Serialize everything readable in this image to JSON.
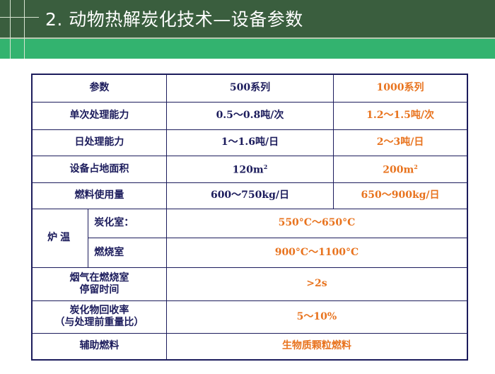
{
  "slide": {
    "title": "2. 动物热解炭化技术—设备参数"
  },
  "colors": {
    "header": "#3a5e3e",
    "band": "#33b36f",
    "text": "#1c1c5c",
    "accent": "#e8731e"
  },
  "table": {
    "headers": [
      "参数",
      "500系列",
      "1000系列"
    ],
    "rows": [
      {
        "param": "单次处理能力",
        "s500": "0.5～0.8吨/次",
        "s1000": "1.2～1.5吨/次"
      },
      {
        "param": "日处理能力",
        "s500": "1～1.6吨/日",
        "s1000": "2～3吨/日"
      },
      {
        "param": "设备占地面积",
        "s500": "120m",
        "s1000": "200m",
        "unit_sup": "2"
      },
      {
        "param": "燃料使用量",
        "s500": "600～750kg/日",
        "s1000": "650～900kg/日"
      }
    ],
    "furnace": {
      "label": "炉温",
      "sub": [
        {
          "name": "炭化室：",
          "value": "550°C～650°C"
        },
        {
          "name": "燃烧室",
          "value": "900°C～1100°C"
        }
      ]
    },
    "merged": [
      {
        "param_line1": "烟气在燃烧室",
        "param_line2": "停留时间",
        "value": ">2s"
      },
      {
        "param_line1": "炭化物回收率",
        "param_line2": "（与处理前重量比）",
        "value": "5～10%"
      },
      {
        "param_line1": "辅助燃料",
        "value": "生物质颗粒燃料"
      }
    ]
  }
}
